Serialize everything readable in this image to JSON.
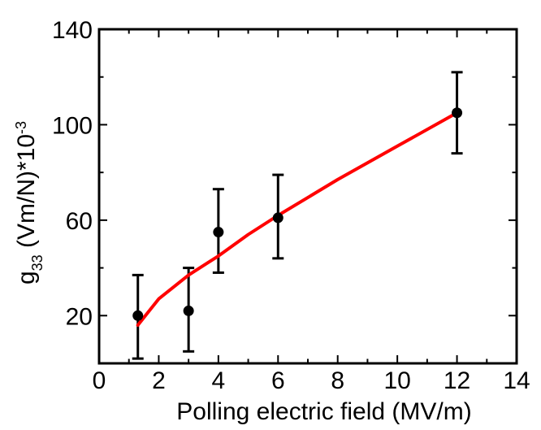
{
  "chart_data": {
    "type": "scatter",
    "title": "",
    "xlabel": "Polling electric field (MV/m)",
    "ylabel": {
      "base": "g",
      "subscript": "33",
      "mid": " (Vm/N)*10",
      "superscript": "-3"
    },
    "xlim": [
      0,
      14
    ],
    "ylim": [
      0,
      140
    ],
    "xticks": [
      0,
      2,
      4,
      6,
      8,
      10,
      12,
      14
    ],
    "yticks": [
      20,
      60,
      100,
      140
    ],
    "grid": false,
    "series": [
      {
        "type": "scatter-errorbar",
        "color": "#000000",
        "points": [
          {
            "x": 1.3,
            "y": 20,
            "err_low": 18,
            "err_high": 17
          },
          {
            "x": 3,
            "y": 22,
            "err_low": 17,
            "err_high": 18
          },
          {
            "x": 4,
            "y": 55,
            "err_low": 17,
            "err_high": 18
          },
          {
            "x": 6,
            "y": 61,
            "err_low": 17,
            "err_high": 18
          },
          {
            "x": 12,
            "y": 105,
            "err_low": 17,
            "err_high": 17
          }
        ]
      },
      {
        "type": "line",
        "color": "#ff0000",
        "points": [
          {
            "x": 1.3,
            "y": 16
          },
          {
            "x": 2,
            "y": 27
          },
          {
            "x": 3,
            "y": 37
          },
          {
            "x": 4,
            "y": 45
          },
          {
            "x": 5,
            "y": 54
          },
          {
            "x": 6,
            "y": 62
          },
          {
            "x": 8,
            "y": 77
          },
          {
            "x": 10,
            "y": 91
          },
          {
            "x": 12,
            "y": 105
          }
        ]
      }
    ]
  }
}
